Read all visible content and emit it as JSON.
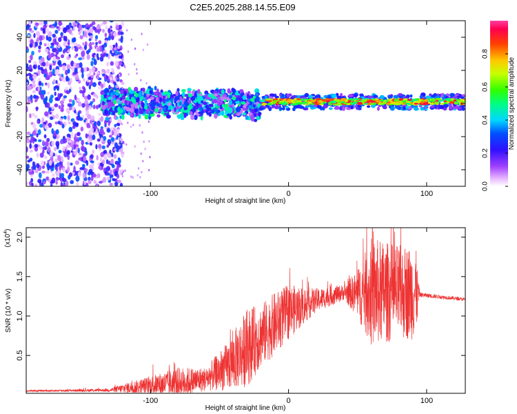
{
  "figure_title": "C2E5.2025.288.14.55.E09",
  "chart_data": [
    {
      "type": "heatmap",
      "title": "",
      "xlabel": "Height of straight line (km)",
      "ylabel": "Frequency (Hz)",
      "xlim": [
        -190,
        128
      ],
      "ylim": [
        -50,
        50
      ],
      "xticks": [
        -100,
        0,
        100
      ],
      "yticks": [
        -40,
        -20,
        0,
        20,
        40
      ],
      "description_regions": [
        {
          "x_range": [
            -190,
            -120
          ],
          "pattern": "broadband noise",
          "freq_range": [
            -50,
            50
          ],
          "amplitude": 0.25
        },
        {
          "x_range": [
            -135,
            -20
          ],
          "pattern": "band near 0 Hz",
          "freq_center": 0,
          "freq_halfwidth": 8,
          "amplitude": 0.35
        },
        {
          "x_range": [
            -20,
            128
          ],
          "pattern": "narrow line at ~0 Hz",
          "freq_center": 1,
          "freq_halfwidth": 2,
          "amplitude": 0.9
        }
      ],
      "colorbar": {
        "label": "Normalized spectral amplitude",
        "range": [
          0.0,
          1.0
        ],
        "ticks": [
          0.0,
          0.2,
          0.4,
          0.6,
          0.8
        ],
        "tick_labels": [
          "0.0",
          "0.2",
          "0.4",
          "0.6",
          "0.8"
        ]
      }
    },
    {
      "type": "line",
      "title": "",
      "xlabel": "Height of straight line (km)",
      "ylabel": "SNR (10 * v/v)",
      "y_scale_label": "(x10",
      "y_scale_exp": "4",
      "xlim": [
        -190,
        128
      ],
      "ylim": [
        0.02,
        2.12
      ],
      "xticks": [
        -100,
        0,
        100
      ],
      "yticks": [
        0.5,
        1.0,
        1.5,
        2.0
      ],
      "ytick_labels": [
        "0.5",
        "1.0",
        "1.5",
        "2.0"
      ],
      "color": "#ee3333",
      "envelope": [
        {
          "x": -190,
          "base": 0.05,
          "amp": 0.01
        },
        {
          "x": -130,
          "base": 0.06,
          "amp": 0.02
        },
        {
          "x": -120,
          "base": 0.08,
          "amp": 0.06
        },
        {
          "x": -100,
          "base": 0.12,
          "amp": 0.12
        },
        {
          "x": -80,
          "base": 0.15,
          "amp": 0.2
        },
        {
          "x": -60,
          "base": 0.2,
          "amp": 0.15
        },
        {
          "x": -45,
          "base": 0.35,
          "amp": 0.3
        },
        {
          "x": -30,
          "base": 0.6,
          "amp": 0.5
        },
        {
          "x": -20,
          "base": 0.75,
          "amp": 0.4
        },
        {
          "x": -10,
          "base": 0.9,
          "amp": 0.4
        },
        {
          "x": 0,
          "base": 1.05,
          "amp": 0.35
        },
        {
          "x": 20,
          "base": 1.2,
          "amp": 0.15
        },
        {
          "x": 40,
          "base": 1.3,
          "amp": 0.1
        },
        {
          "x": 50,
          "base": 1.28,
          "amp": 0.3
        },
        {
          "x": 60,
          "base": 1.3,
          "amp": 0.7
        },
        {
          "x": 80,
          "base": 1.3,
          "amp": 0.6
        },
        {
          "x": 92,
          "base": 1.3,
          "amp": 0.6
        },
        {
          "x": 95,
          "base": 1.27,
          "amp": 0.03
        },
        {
          "x": 128,
          "base": 1.21,
          "amp": 0.02
        }
      ]
    }
  ]
}
